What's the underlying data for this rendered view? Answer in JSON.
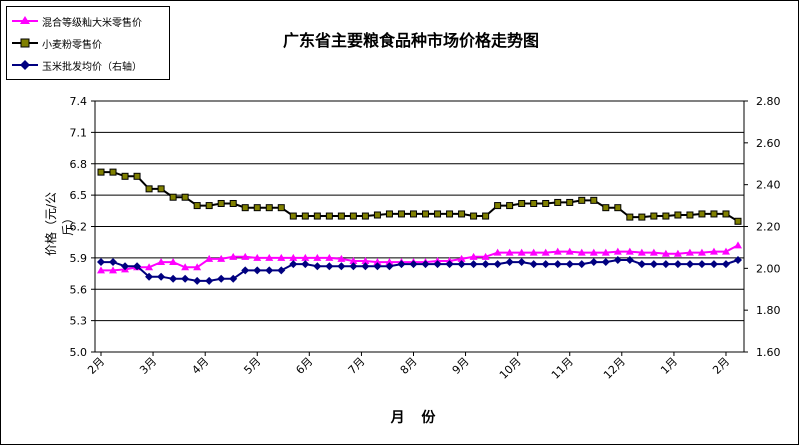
{
  "chart_data": {
    "type": "line",
    "title": "广东省主要粮食品种市场价格走势图",
    "xlabel": "月  份",
    "ylabel": "价格（元/公斤）",
    "x_tick_labels": [
      "2月",
      "3月",
      "4月",
      "5月",
      "6月",
      "7月",
      "8月",
      "9月",
      "10月",
      "11月",
      "12月",
      "1月",
      "2月"
    ],
    "x_tick_positions": [
      0,
      4.33,
      8.67,
      13,
      17.33,
      21.67,
      26,
      30.33,
      34.67,
      39,
      43.33,
      47.67,
      52
    ],
    "y_left": {
      "ylim": [
        5.0,
        7.4
      ],
      "ticks": [
        "5.0",
        "5.3",
        "5.6",
        "5.9",
        "6.2",
        "6.5",
        "6.8",
        "7.1",
        "7.4"
      ]
    },
    "y_right": {
      "ylim": [
        1.6,
        2.8
      ],
      "ticks": [
        "1.60",
        "1.80",
        "2.00",
        "2.20",
        "2.40",
        "2.60",
        "2.80"
      ]
    },
    "grid": "horizontal",
    "legend_position": "top-left",
    "series": [
      {
        "name": "混合等级籼大米零售价",
        "axis": "left",
        "color": "#ff00ff",
        "marker": "triangle",
        "values": [
          5.78,
          5.78,
          5.79,
          5.81,
          5.81,
          5.86,
          5.86,
          5.81,
          5.81,
          5.89,
          5.89,
          5.91,
          5.91,
          5.9,
          5.9,
          5.9,
          5.9,
          5.9,
          5.9,
          5.9,
          5.89,
          5.87,
          5.87,
          5.86,
          5.86,
          5.86,
          5.86,
          5.86,
          5.87,
          5.87,
          5.89,
          5.91,
          5.91,
          5.95,
          5.95,
          5.95,
          5.95,
          5.95,
          5.96,
          5.96,
          5.95,
          5.95,
          5.95,
          5.96,
          5.96,
          5.95,
          5.95,
          5.94,
          5.94,
          5.95,
          5.95,
          5.96,
          5.96,
          6.02
        ]
      },
      {
        "name": "小麦粉零售价",
        "axis": "left",
        "color": "#000000",
        "marker_color": "#808000",
        "marker": "square",
        "values": [
          6.72,
          6.72,
          6.68,
          6.68,
          6.56,
          6.56,
          6.48,
          6.48,
          6.4,
          6.4,
          6.42,
          6.42,
          6.38,
          6.38,
          6.38,
          6.38,
          6.3,
          6.3,
          6.3,
          6.3,
          6.3,
          6.3,
          6.3,
          6.31,
          6.32,
          6.32,
          6.32,
          6.32,
          6.32,
          6.32,
          6.32,
          6.3,
          6.3,
          6.4,
          6.4,
          6.42,
          6.42,
          6.42,
          6.43,
          6.43,
          6.45,
          6.45,
          6.38,
          6.38,
          6.29,
          6.29,
          6.3,
          6.3,
          6.31,
          6.31,
          6.32,
          6.32,
          6.32,
          6.25
        ]
      },
      {
        "name": "玉米批发均价（右轴）",
        "axis": "right",
        "color": "#000080",
        "marker": "diamond",
        "values": [
          2.03,
          2.03,
          2.01,
          2.01,
          1.96,
          1.96,
          1.95,
          1.95,
          1.94,
          1.94,
          1.95,
          1.95,
          1.99,
          1.99,
          1.99,
          1.99,
          2.02,
          2.02,
          2.01,
          2.01,
          2.01,
          2.01,
          2.01,
          2.01,
          2.01,
          2.02,
          2.02,
          2.02,
          2.02,
          2.02,
          2.02,
          2.02,
          2.02,
          2.02,
          2.03,
          2.03,
          2.02,
          2.02,
          2.02,
          2.02,
          2.02,
          2.03,
          2.03,
          2.04,
          2.04,
          2.02,
          2.02,
          2.02,
          2.02,
          2.02,
          2.02,
          2.02,
          2.02,
          2.04
        ]
      }
    ]
  }
}
